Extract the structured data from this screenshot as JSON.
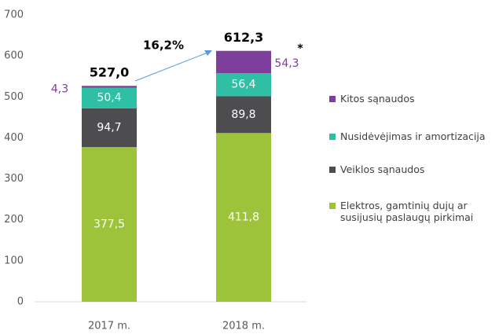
{
  "chart_data": {
    "type": "stacked_bar",
    "categories": [
      "2017 m.",
      "2018 m."
    ],
    "series": [
      {
        "name": "Elektros, gamtinių dujų ar susijusių paslaugų pirkimai",
        "color": "#9dc33b",
        "values": [
          377.5,
          411.8
        ],
        "value_labels": [
          "377,5",
          "411,8"
        ]
      },
      {
        "name": "Veiklos sąnaudos",
        "color": "#4d4d4f",
        "values": [
          94.7,
          89.8
        ],
        "value_labels": [
          "94,7",
          "89,8"
        ]
      },
      {
        "name": "Nusidėvėjimas ir amortizacija",
        "color": "#2ebfa5",
        "values": [
          50.4,
          56.4
        ],
        "value_labels": [
          "50,4",
          "56,4"
        ]
      },
      {
        "name": "Kitos sąnaudos",
        "color": "#7d3f9b",
        "values": [
          4.3,
          54.3
        ],
        "value_labels": [
          "4,3",
          "54,3"
        ]
      }
    ],
    "totals": [
      527.0,
      612.3
    ],
    "total_labels": [
      "527,0",
      "612,3"
    ],
    "annotations": [
      "16,2%",
      "*"
    ],
    "ylim": [
      0,
      700
    ],
    "yticks": [
      0,
      100,
      200,
      300,
      400,
      500,
      600,
      700
    ],
    "legend": "right"
  }
}
